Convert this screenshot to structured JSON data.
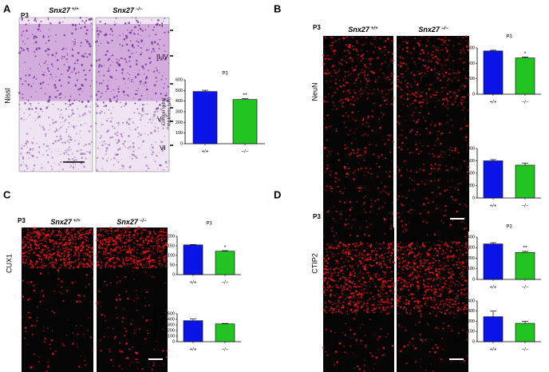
{
  "panels": [
    {
      "letter": "A",
      "age": "P3",
      "stain": "Nissl",
      "genotypes": [
        {
          "gene": "Snx27",
          "allele": "+/+"
        },
        {
          "gene": "Snx27",
          "allele": "−/−"
        }
      ],
      "layers": [
        "I",
        "II-IV",
        "V",
        "VI"
      ]
    },
    {
      "letter": "B",
      "age": "P3",
      "stain": "NeuN",
      "genotypes": [
        {
          "gene": "Snx27",
          "allele": "+/+"
        },
        {
          "gene": "Snx27",
          "allele": "−/−"
        }
      ]
    },
    {
      "letter": "C",
      "age": "P3",
      "stain": "CUX1",
      "genotypes": [
        {
          "gene": "Snx27",
          "allele": "+/+"
        },
        {
          "gene": "Snx27",
          "allele": "−/−"
        }
      ]
    },
    {
      "letter": "D",
      "age": "P3",
      "stain": "CTIP2",
      "genotypes": [
        {
          "gene": "Snx27",
          "allele": "+/+"
        },
        {
          "gene": "Snx27",
          "allele": "−/−"
        }
      ]
    }
  ],
  "chart_data": [
    {
      "type": "bar",
      "title": "P3",
      "ylabel": [
        "Cortical radial",
        "thickness (µm)"
      ],
      "categories": [
        "+/+",
        "−/−"
      ],
      "values": [
        490,
        415
      ],
      "errors": [
        12,
        8
      ],
      "colors": [
        "#0a14e6",
        "#22c422"
      ],
      "annotation": "**",
      "ylim": [
        0,
        600
      ],
      "yticks": [
        0,
        100,
        200,
        300,
        400,
        500,
        600
      ]
    },
    {
      "type": "bar",
      "title": "P3",
      "ylabel": [
        "Cortical radial",
        "thickness (µm)"
      ],
      "categories": [
        "+/+",
        "−/−"
      ],
      "values": [
        560,
        470
      ],
      "errors": [
        10,
        12
      ],
      "colors": [
        "#0a14e6",
        "#22c422"
      ],
      "annotation": "*",
      "ylim": [
        0,
        600
      ],
      "yticks": [
        0,
        200,
        400,
        600
      ]
    },
    {
      "type": "bar",
      "ylabel": [
        "Number of cells per",
        "250-µm column at P3"
      ],
      "categories": [
        "+/+",
        "−/−"
      ],
      "values": [
        600,
        530
      ],
      "errors": [
        20,
        35
      ],
      "colors": [
        "#0a14e6",
        "#22c422"
      ],
      "ylim": [
        0,
        800
      ],
      "yticks": [
        0,
        200,
        400,
        600,
        800
      ]
    },
    {
      "type": "bar",
      "title": "P3",
      "ylabel": [
        "Cortical radial",
        "thickness (µm)"
      ],
      "categories": [
        "+/+",
        "−/−"
      ],
      "values": [
        155,
        122
      ],
      "errors": [
        2,
        3
      ],
      "colors": [
        "#0a14e6",
        "#22c422"
      ],
      "annotation": "*",
      "ylim": [
        0,
        200
      ],
      "yticks": [
        0,
        50,
        100,
        150,
        200
      ]
    },
    {
      "type": "bar",
      "ylabel": [
        "Number of cells per",
        "250-µm column at P3"
      ],
      "categories": [
        "+/+",
        "−/−"
      ],
      "values": [
        375,
        318
      ],
      "errors": [
        30,
        8
      ],
      "colors": [
        "#0a14e6",
        "#22c422"
      ],
      "ylim": [
        0,
        500
      ],
      "yticks": [
        0,
        100,
        200,
        300,
        400,
        500
      ]
    },
    {
      "type": "bar",
      "title": "P3",
      "ylabel": [
        "Cortical radial",
        "thickness (µm)"
      ],
      "categories": [
        "+/+",
        "−/−"
      ],
      "values": [
        335,
        255
      ],
      "errors": [
        12,
        10
      ],
      "colors": [
        "#0a14e6",
        "#22c422"
      ],
      "annotation": "**",
      "ylim": [
        0,
        400
      ],
      "yticks": [
        0,
        100,
        200,
        300,
        400
      ]
    },
    {
      "type": "bar",
      "ylabel": [
        "Number of cells per",
        "250-µm column at P3"
      ],
      "categories": [
        "+/+",
        "−/−"
      ],
      "values": [
        245,
        180
      ],
      "errors": [
        55,
        20
      ],
      "colors": [
        "#0a14e6",
        "#22c422"
      ],
      "ylim": [
        0,
        400
      ],
      "yticks": [
        0,
        100,
        200,
        300,
        400
      ]
    }
  ]
}
